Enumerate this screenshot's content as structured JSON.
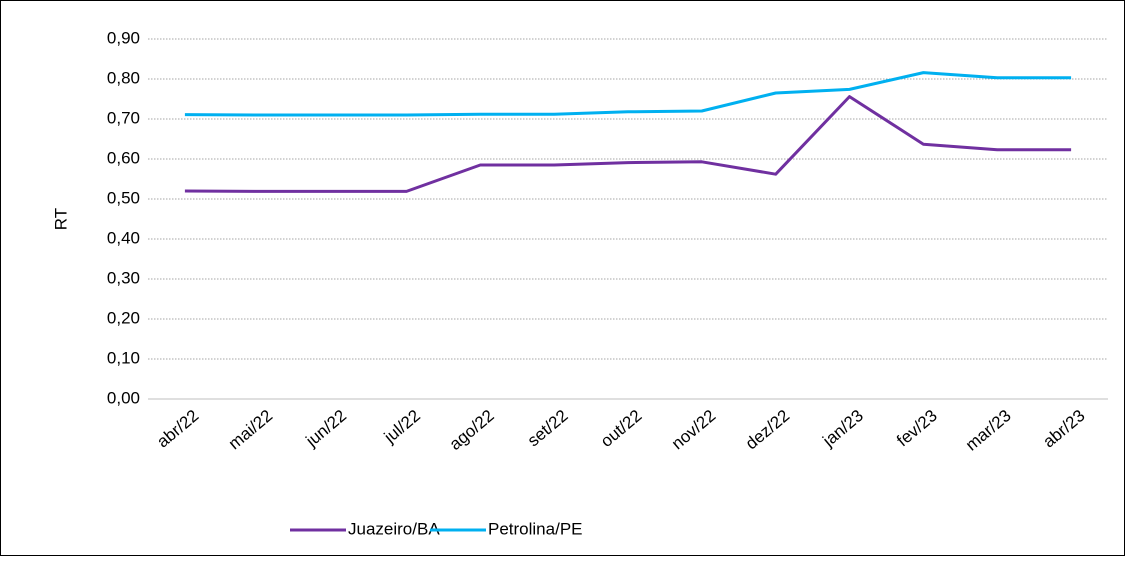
{
  "chart_data": {
    "type": "line",
    "ylabel": "RT",
    "categories": [
      "abr/22",
      "mai/22",
      "jun/22",
      "jul/22",
      "ago/22",
      "set/22",
      "out/22",
      "nov/22",
      "dez/22",
      "jan/23",
      "fev/23",
      "mar/23",
      "abr/23"
    ],
    "series": [
      {
        "name": "Juazeiro/BA",
        "color": "#7030a0",
        "values": [
          0.52,
          0.519,
          0.519,
          0.519,
          0.585,
          0.585,
          0.591,
          0.593,
          0.562,
          0.756,
          0.637,
          0.623,
          0.623
        ]
      },
      {
        "name": "Petrolina/PE",
        "color": "#00b0f0",
        "values": [
          0.711,
          0.71,
          0.71,
          0.71,
          0.712,
          0.712,
          0.718,
          0.72,
          0.765,
          0.774,
          0.816,
          0.803,
          0.803
        ]
      }
    ],
    "ylim": [
      0,
      0.9
    ],
    "yticks": [
      {
        "value": 0,
        "label": "0,00"
      },
      {
        "value": 0.1,
        "label": "0,10"
      },
      {
        "value": 0.2,
        "label": "0,20"
      },
      {
        "value": 0.3,
        "label": "0,30"
      },
      {
        "value": 0.4,
        "label": "0,40"
      },
      {
        "value": 0.5,
        "label": "0,50"
      },
      {
        "value": 0.6,
        "label": "0,60"
      },
      {
        "value": 0.7,
        "label": "0,70"
      },
      {
        "value": 0.8,
        "label": "0,80"
      },
      {
        "value": 0.9,
        "label": "0,90"
      }
    ],
    "grid": true,
    "legend": "bottom"
  }
}
